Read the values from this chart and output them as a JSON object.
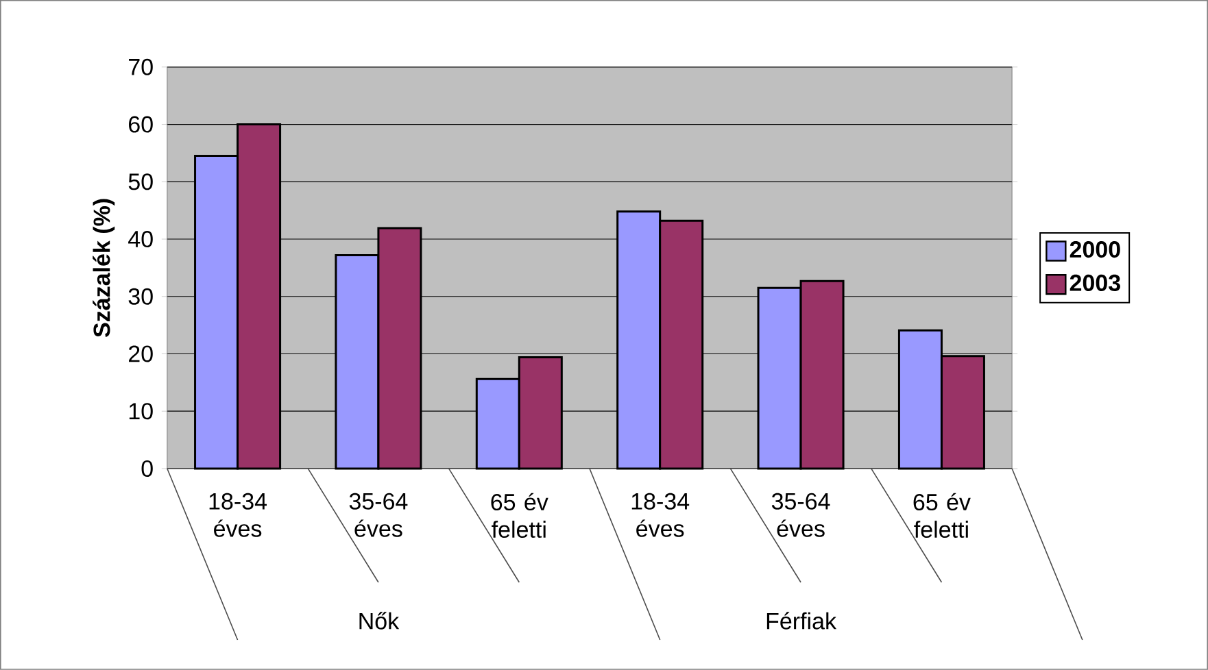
{
  "chart_data": {
    "type": "bar",
    "ylabel": "Százalék (%)",
    "categories": [
      "18-34 éves",
      "35-64 éves",
      "65 év feletti",
      "18-34 éves",
      "35-64 éves",
      "65 év feletti"
    ],
    "series": [
      {
        "name": "2000",
        "color": "#9999ff",
        "values": [
          54.5,
          37.2,
          15.6,
          44.8,
          31.5,
          24.1
        ]
      },
      {
        "name": "2003",
        "color": "#993366",
        "values": [
          60,
          41.9,
          19.4,
          43.2,
          32.7,
          19.6
        ]
      }
    ],
    "ylim": [
      0,
      70
    ],
    "yticks": [
      0,
      10,
      20,
      30,
      40,
      50,
      60,
      70
    ],
    "grid": "y",
    "legend": "right",
    "annotations": [
      "Nők",
      "Férfiak"
    ]
  }
}
